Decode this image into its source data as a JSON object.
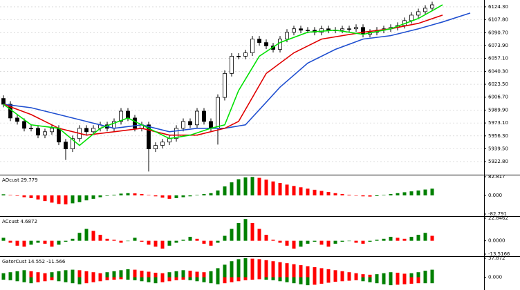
{
  "chart_data": [
    {
      "type": "candlestick",
      "open": [
        6005,
        5997.5,
        5979.6,
        5975.1,
        5966.2,
        5966.2,
        5957.3,
        5961.7,
        5966.2,
        5948.3,
        5939.4,
        5952.8,
        5966.2,
        5961.7,
        5966.2,
        5970.7,
        5966.2,
        5975.1,
        5988.5,
        5979.6,
        5966.2,
        5970.7,
        5939.4,
        5943.9,
        5948.3,
        5952.8,
        5966.2,
        5975.1,
        5970.7,
        5988.5,
        5975.1,
        5966.2,
        6006.4,
        6037.6,
        6060.0,
        6060.0,
        6064.4,
        6082.3,
        6077.8,
        6073.4,
        6068.9,
        6082.3,
        6091.2,
        6095.7,
        6093.9,
        6093.9,
        6091.2,
        6095.7,
        6093.9,
        6093.9,
        6095.7,
        6095.7,
        6097.5,
        6088.5,
        6091.2,
        6093.9,
        6095.7,
        6097.5,
        6100.1,
        6106.4,
        6113.5,
        6118.0,
        6122.5
      ],
      "high": [
        6009,
        6001.5,
        5983.6,
        5979.1,
        5970.2,
        5970.2,
        5965.7,
        5970.2,
        5970.2,
        5952.3,
        5956.8,
        5970.2,
        5970.2,
        5970.2,
        5974.7,
        5974.7,
        5979.1,
        5992.5,
        5992.5,
        5983.6,
        5974.7,
        5974.7,
        5947.9,
        5952.3,
        5956.8,
        5970.2,
        5979.1,
        5979.1,
        5992.5,
        5992.5,
        5979.1,
        6010.4,
        6041.6,
        6064,
        6064,
        6068.4,
        6086.3,
        6086.3,
        6081.8,
        6077.4,
        6086.3,
        6095.2,
        6099.7,
        6099.7,
        6097.9,
        6097.9,
        6099.7,
        6099.7,
        6097.9,
        6099.7,
        6099.7,
        6101.5,
        6101.5,
        6095.2,
        6097.9,
        6099.7,
        6101.5,
        6104.1,
        6110.4,
        6117.5,
        6122,
        6126.5,
        6130.9
      ],
      "low": [
        5993.5,
        5975.6,
        5971.1,
        5962.2,
        5962.2,
        5953.3,
        5953.3,
        5957.7,
        5944.3,
        5925,
        5935.4,
        5948.8,
        5957.7,
        5957.7,
        5962.2,
        5962.2,
        5962.2,
        5971.1,
        5975.6,
        5962.2,
        5962.2,
        5910,
        5935.4,
        5939.9,
        5944.3,
        5948.8,
        5962.2,
        5966.7,
        5966.7,
        5971.1,
        5962.2,
        5945,
        6002.4,
        6033.6,
        6056,
        6056,
        6060.4,
        6073.8,
        6069.4,
        6064.9,
        6064.9,
        6078.3,
        6087.2,
        6089.9,
        6089.9,
        6087.2,
        6087.2,
        6089.9,
        6089.9,
        6089.9,
        6091.7,
        6091.7,
        6084.5,
        6084.5,
        6087.2,
        6089.9,
        6091.7,
        6093.5,
        6096.1,
        6102.4,
        6109.5,
        6114,
        6118.5
      ],
      "close": [
        5997.5,
        5979.6,
        5975.1,
        5966.2,
        5966.2,
        5957.3,
        5961.7,
        5966.2,
        5948.3,
        5939.4,
        5952.8,
        5966.2,
        5961.7,
        5966.2,
        5970.7,
        5966.2,
        5975.1,
        5988.5,
        5979.6,
        5966.2,
        5970.7,
        5939.4,
        5943.9,
        5948.3,
        5952.8,
        5966.2,
        5975.1,
        5970.7,
        5988.5,
        5975.1,
        5966.2,
        6006.4,
        6037.6,
        6060.0,
        6060.0,
        6064.4,
        6082.3,
        6077.8,
        6073.4,
        6068.9,
        6082.3,
        6091.2,
        6095.7,
        6093.9,
        6093.9,
        6091.2,
        6095.7,
        6093.9,
        6093.9,
        6095.7,
        6095.7,
        6097.5,
        6088.5,
        6091.2,
        6093.9,
        6095.7,
        6097.5,
        6100.1,
        6106.4,
        6113.5,
        6118.0,
        6122.5,
        6126.9
      ],
      "up_color": "#ffffff",
      "down_color": "#000000",
      "lines": [
        {
          "color": "#1f4fd0",
          "x": [
            0,
            4,
            8,
            12,
            16,
            20,
            24,
            28,
            32,
            35,
            40,
            44,
            48,
            52,
            56,
            60,
            63.5,
            67.5
          ],
          "values": [
            5997.5,
            5993.0,
            5984.1,
            5975.1,
            5966.2,
            5970.7,
            5961.7,
            5966.2,
            5966.2,
            5970.7,
            6019.8,
            6051.0,
            6068.9,
            6082.3,
            6086.8,
            6095.7,
            6104.6,
            6116.2
          ]
        },
        {
          "color": "#e00000",
          "x": [
            0,
            4,
            8,
            12,
            16,
            20,
            24,
            28,
            32,
            34,
            38,
            42,
            46,
            52,
            56,
            60,
            63.5
          ],
          "values": [
            5997.5,
            5984.1,
            5966.2,
            5957.3,
            5961.7,
            5966.2,
            5957.3,
            5957.3,
            5966.2,
            5975.1,
            6037.6,
            6064.4,
            6082.3,
            6091.2,
            6095.7,
            6102.8,
            6113.5
          ]
        },
        {
          "color": "#00e000",
          "x": [
            0,
            4,
            8,
            11,
            14,
            18,
            20,
            24,
            27,
            30,
            32,
            34,
            37,
            40,
            44,
            48,
            52,
            56,
            60,
            63.5
          ],
          "values": [
            5997.5,
            5970.7,
            5966.2,
            5943.9,
            5966.2,
            5979.6,
            5970.7,
            5952.8,
            5957.3,
            5966.2,
            5970.7,
            6015.3,
            6060.0,
            6077.8,
            6091.2,
            6093.9,
            6088.5,
            6095.7,
            6109.1,
            6126.9
          ]
        }
      ],
      "ylim": [
        5906.7,
        6131.4
      ],
      "yticks": [
        {
          "value": 6124.3,
          "label": "6124.30"
        },
        {
          "value": 6107.8,
          "label": "6107.80"
        },
        {
          "value": 6090.7,
          "label": "6090.70"
        },
        {
          "value": 6073.9,
          "label": "6073.90"
        },
        {
          "value": 6057.1,
          "label": "6057.10"
        },
        {
          "value": 6040.3,
          "label": "6040.30"
        },
        {
          "value": 6023.5,
          "label": "6023.50"
        },
        {
          "value": 6006.7,
          "label": "6006.70"
        },
        {
          "value": 5989.9,
          "label": "5989.90"
        },
        {
          "value": 5973.1,
          "label": "5973.10"
        },
        {
          "value": 5956.3,
          "label": "5956.30"
        },
        {
          "value": 5939.5,
          "label": "5939.50"
        },
        {
          "value": 5922.8,
          "label": "5922.80"
        }
      ],
      "grid": true
    },
    {
      "type": "histogram",
      "title": "AOcust 29.779",
      "values": [
        5,
        2,
        -2,
        -8,
        -12,
        -18,
        -25,
        -32,
        -38,
        -40,
        -35,
        -30,
        -22,
        -15,
        -8,
        -2,
        3,
        8,
        10,
        9,
        6,
        2,
        -4,
        -10,
        -15,
        -12,
        -8,
        -4,
        2,
        6,
        10,
        22,
        40,
        58,
        72,
        80,
        82,
        78,
        70,
        62,
        55,
        48,
        42,
        36,
        30,
        25,
        20,
        15,
        10,
        6,
        3,
        -1,
        -4,
        -5,
        -3,
        2,
        6,
        10,
        14,
        18,
        22,
        26,
        30
      ],
      "up_color": "#008000",
      "down_color": "#ff0000",
      "ylim": [
        -82.791,
        82.817
      ],
      "yticks": [
        82.817,
        {
          "value": 0,
          "label": "0.000"
        },
        -82.791
      ]
    },
    {
      "type": "histogram",
      "title": "ACcust 4.6872",
      "values": [
        3,
        -2,
        -5,
        -6,
        -4,
        -2,
        -3,
        -6,
        -4,
        -1,
        2,
        8,
        12,
        10,
        6,
        2,
        1,
        -2,
        0,
        3,
        -1,
        -4,
        -6,
        -8,
        -5,
        -2,
        1,
        4,
        2,
        -3,
        -5,
        -2,
        5,
        12,
        18,
        22,
        18,
        12,
        6,
        1,
        -2,
        -5,
        -8,
        -6,
        -3,
        -1,
        -4,
        -6,
        -3,
        -1,
        0,
        -2,
        -3,
        -1,
        1,
        2,
        4,
        3,
        2,
        4,
        6,
        8,
        5
      ],
      "up_color": "#008000",
      "down_color": "#ff0000",
      "ylim": [
        -13.5166,
        22.8462
      ],
      "yticks": [
        22.8462,
        {
          "value": 0,
          "label": "0.0000"
        },
        -13.5166
      ]
    },
    {
      "type": "gator",
      "title": "GatorCust 14.552 -11.566",
      "upper_values": [
        8,
        10,
        12,
        14,
        12,
        10,
        8,
        10,
        12,
        14,
        15,
        14,
        12,
        10,
        8,
        10,
        12,
        14,
        16,
        15,
        13,
        11,
        9,
        8,
        10,
        12,
        14,
        13,
        11,
        10,
        12,
        18,
        25,
        32,
        36,
        38,
        37,
        36,
        34,
        32,
        30,
        28,
        26,
        24,
        22,
        20,
        18,
        16,
        14,
        12,
        10,
        8,
        6,
        5,
        6,
        8,
        10,
        9,
        7,
        8,
        10,
        13,
        15
      ],
      "lower_values": [
        -5,
        -6,
        -8,
        -10,
        -12,
        -10,
        -8,
        -6,
        -8,
        -10,
        -12,
        -14,
        -12,
        -10,
        -8,
        -6,
        -5,
        -4,
        -5,
        -6,
        -8,
        -10,
        -12,
        -10,
        -8,
        -6,
        -5,
        -6,
        -8,
        -10,
        -12,
        -14,
        -12,
        -10,
        -8,
        -6,
        -5,
        -4,
        -5,
        -6,
        -8,
        -10,
        -12,
        -14,
        -16,
        -15,
        -13,
        -11,
        -9,
        -8,
        -7,
        -6,
        -8,
        -10,
        -12,
        -14,
        -16,
        -15,
        -14,
        -13,
        -12,
        -12,
        -12
      ],
      "up_color": "#008000",
      "down_color": "#ff0000",
      "ylim": [
        -20,
        37.872
      ],
      "yticks": [
        37.872,
        {
          "value": 0,
          "label": "0.000"
        }
      ]
    }
  ]
}
